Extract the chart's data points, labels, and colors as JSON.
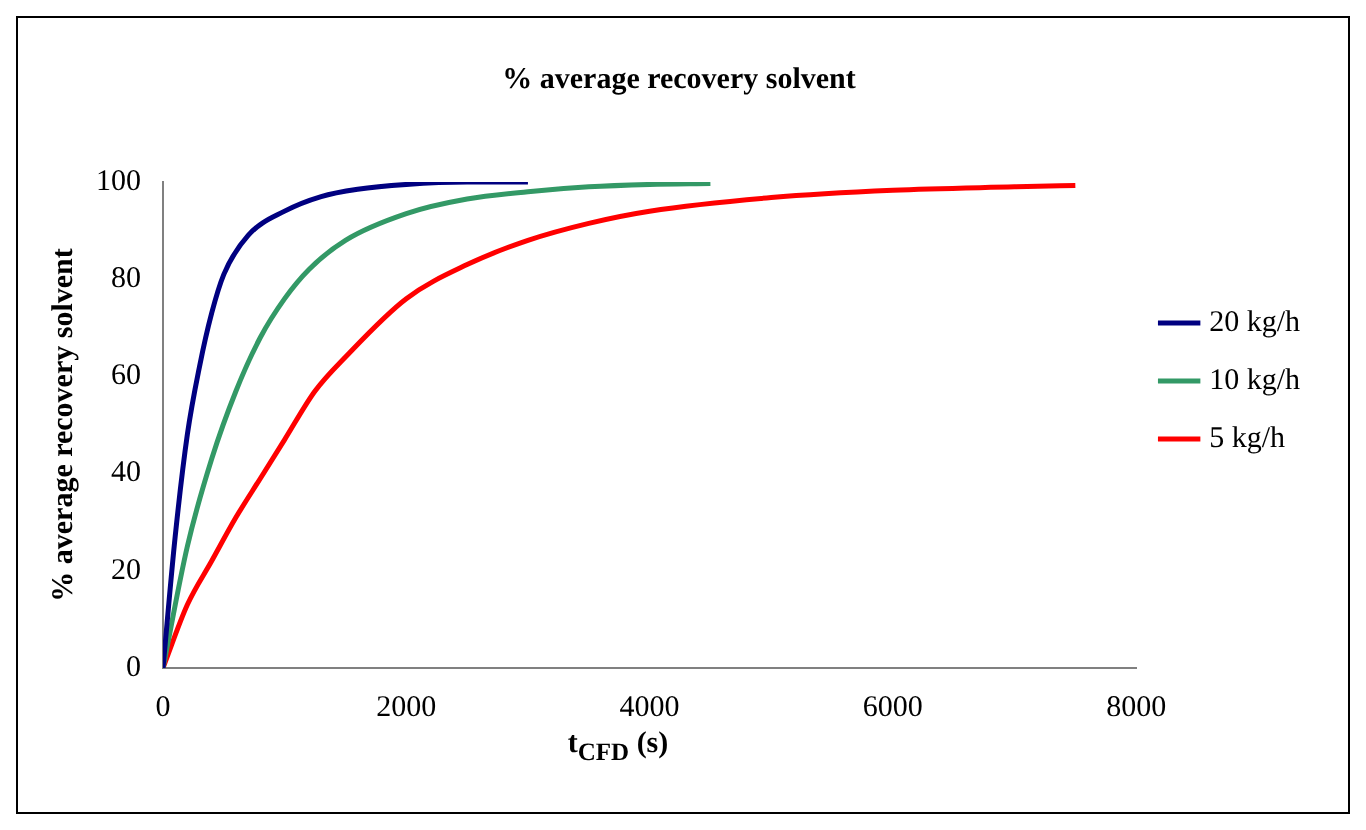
{
  "chart_data": {
    "type": "line",
    "title": "% average recovery solvent",
    "xlabel": "t$_{CFD}$ (s)",
    "ylabel": "% average recovery solvent",
    "xlim": [
      0,
      8000
    ],
    "xticks": [
      0,
      2000,
      4000,
      6000,
      8000
    ],
    "ylim": [
      0,
      100
    ],
    "yticks": [
      0,
      20,
      40,
      60,
      80,
      100
    ],
    "grid": false,
    "legend": "right",
    "marker": "none",
    "line_style": "solid",
    "series": [
      {
        "name": "20 kg/h",
        "color": "#000080",
        "x": [
          0,
          100,
          200,
          300,
          400,
          500,
          700,
          1000,
          1300,
          1600,
          2000,
          2500,
          3000
        ],
        "values": [
          0,
          27,
          48,
          62,
          73,
          81,
          89,
          94,
          97,
          98.5,
          99.5,
          100,
          100
        ]
      },
      {
        "name": "10 kg/h",
        "color": "#339966",
        "x": [
          0,
          200,
          400,
          600,
          800,
          1000,
          1200,
          1500,
          2000,
          2500,
          3000,
          3500,
          4000,
          4500
        ],
        "values": [
          0,
          25,
          43,
          57,
          68,
          76,
          82,
          88,
          93.5,
          96.5,
          98,
          99,
          99.5,
          99.7
        ]
      },
      {
        "name": "5 kg/h",
        "color": "#ff0000",
        "x": [
          0,
          200,
          400,
          600,
          800,
          1000,
          1250,
          1500,
          2000,
          2500,
          3000,
          3500,
          4000,
          5000,
          6000,
          7000,
          7500
        ],
        "values": [
          0,
          13,
          22,
          31,
          39,
          47,
          57,
          64,
          76,
          83,
          88,
          91.5,
          94,
          96.8,
          98.3,
          99,
          99.3
        ]
      }
    ]
  }
}
